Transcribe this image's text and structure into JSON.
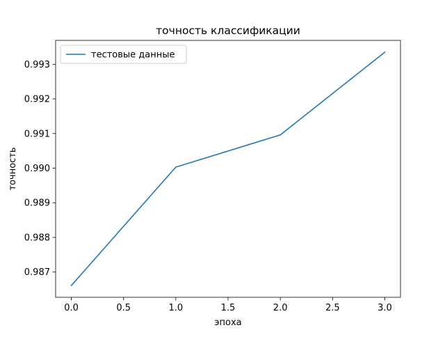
{
  "chart_data": {
    "type": "line",
    "title": "точность классификации",
    "xlabel": "эпоха",
    "ylabel": "точность",
    "x": [
      0,
      1,
      2,
      3
    ],
    "series": [
      {
        "name": "тестовые данные",
        "color": "#1f77b4",
        "values": [
          0.98661,
          0.99003,
          0.99096,
          0.99335
        ]
      }
    ],
    "xlim": [
      -0.15,
      3.15
    ],
    "ylim": [
      0.98627,
      0.99369
    ],
    "xticks": [
      0.0,
      0.5,
      1.0,
      1.5,
      2.0,
      2.5,
      3.0
    ],
    "xtick_labels": [
      "0.0",
      "0.5",
      "1.0",
      "1.5",
      "2.0",
      "2.5",
      "3.0"
    ],
    "yticks": [
      0.987,
      0.988,
      0.989,
      0.99,
      0.991,
      0.992,
      0.993
    ],
    "ytick_labels": [
      "0.987",
      "0.988",
      "0.989",
      "0.990",
      "0.991",
      "0.992",
      "0.993"
    ],
    "grid": false,
    "legend_position": "top-left"
  }
}
